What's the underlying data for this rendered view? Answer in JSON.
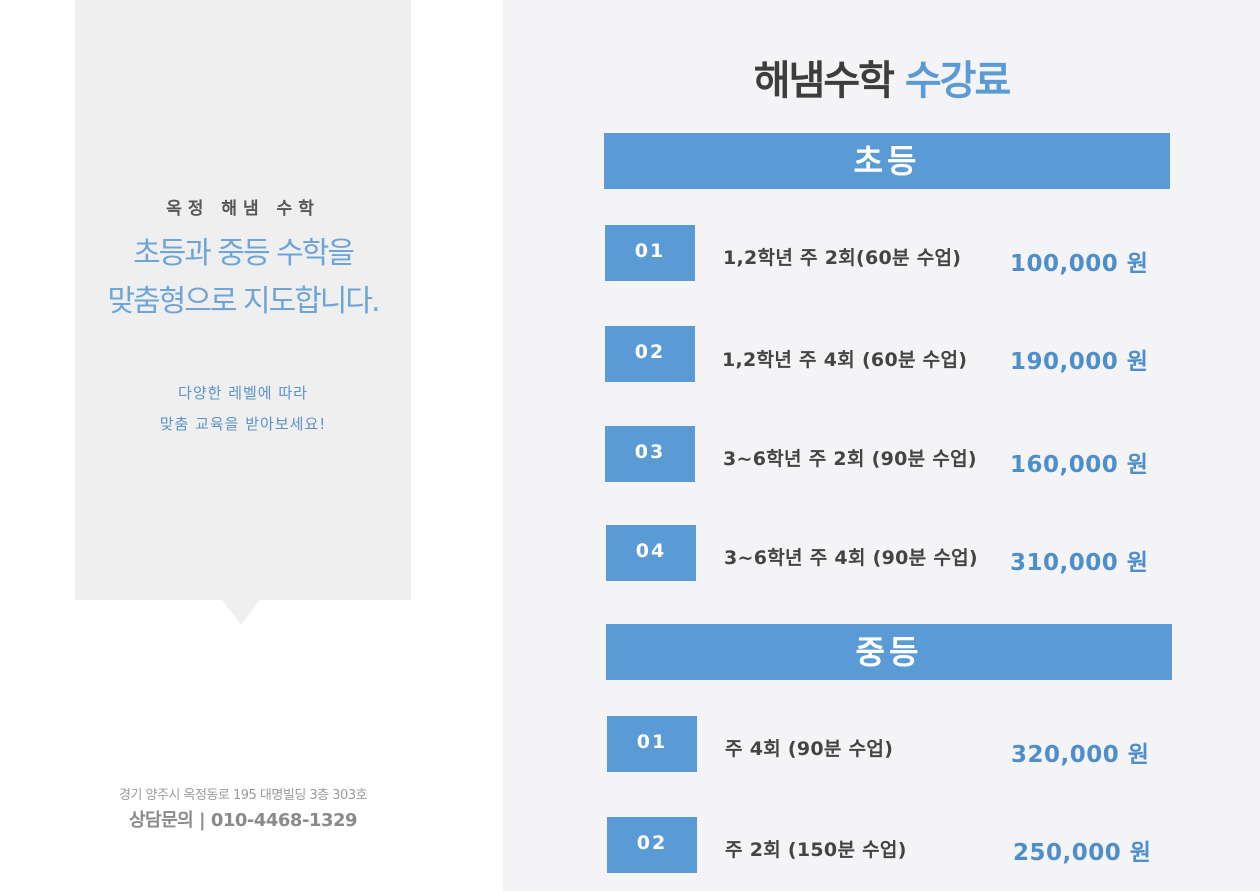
{
  "left": {
    "brand": "옥정 해냄 수학",
    "headline_line1": "초등과 중등 수학을",
    "headline_line2": "맞춤형으로 지도합니다.",
    "sub_line1": "다양한 레벨에 따라",
    "sub_line2": "맞춤 교육을 받아보세요!",
    "address": "경기 양주시 옥정동로 195 대명빌딩 3층 303호",
    "contact": "상담문의 | 010-4468-1329"
  },
  "title": {
    "part1": "해냄수학",
    "part2": "수강료"
  },
  "elementary": {
    "label": "초등",
    "items": [
      {
        "num": "01",
        "desc": "1,2학년 주 2회(60분 수업)",
        "price": "100,000 원"
      },
      {
        "num": "02",
        "desc": "1,2학년 주 4회 (60분 수업)",
        "price": "190,000 원"
      },
      {
        "num": "03",
        "desc": "3~6학년 주 2회 (90분 수업)",
        "price": "160,000 원"
      },
      {
        "num": "04",
        "desc": "3~6학년 주 4회 (90분 수업)",
        "price": "310,000 원"
      }
    ]
  },
  "middle": {
    "label": "중등",
    "items": [
      {
        "num": "01",
        "desc": "주 4회 (90분 수업)",
        "price": "320,000 원"
      },
      {
        "num": "02",
        "desc": "주 2회 (150분 수업)",
        "price": "250,000 원"
      }
    ]
  },
  "colors": {
    "accent": "#5b9bd5",
    "price": "#4e8fcb",
    "panel_bg": "#f4f3f5",
    "card_bg": "#efeff0"
  }
}
